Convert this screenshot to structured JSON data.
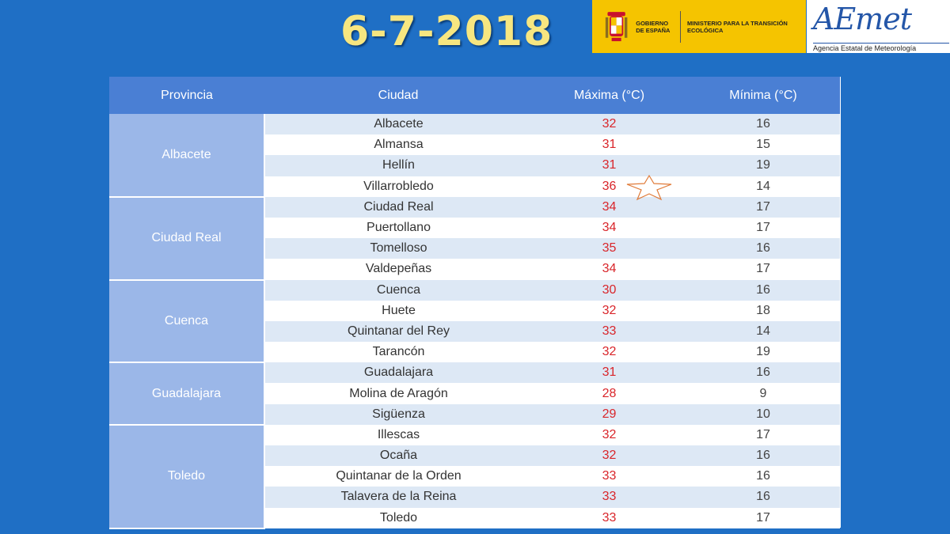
{
  "header": {
    "date": "6-7-2018",
    "gobierno": "GOBIERNO DE ESPAÑA",
    "ministerio": "MINISTERIO PARA LA TRANSICIÓN ECOLÓGICA",
    "logo_text": "AEmet",
    "logo_subtitle": "Agencia Estatal de Meteorología"
  },
  "table": {
    "columns": [
      "Provincia",
      "Ciudad",
      "Máxima (°C)",
      "Mínima (°C)"
    ],
    "groups": [
      {
        "provincia": "Albacete",
        "rows": [
          {
            "ciudad": "Albacete",
            "max": "32",
            "min": "16"
          },
          {
            "ciudad": "Almansa",
            "max": "31",
            "min": "15"
          },
          {
            "ciudad": "Hellín",
            "max": "31",
            "min": "19"
          },
          {
            "ciudad": "Villarrobledo",
            "max": "36",
            "min": "14"
          }
        ]
      },
      {
        "provincia": "Ciudad Real",
        "rows": [
          {
            "ciudad": "Ciudad Real",
            "max": "34",
            "min": "17"
          },
          {
            "ciudad": "Puertollano",
            "max": "34",
            "min": "17"
          },
          {
            "ciudad": "Tomelloso",
            "max": "35",
            "min": "16"
          },
          {
            "ciudad": "Valdepeñas",
            "max": "34",
            "min": "17"
          }
        ]
      },
      {
        "provincia": "Cuenca",
        "rows": [
          {
            "ciudad": "Cuenca",
            "max": "30",
            "min": "16"
          },
          {
            "ciudad": "Huete",
            "max": "32",
            "min": "18"
          },
          {
            "ciudad": "Quintanar del Rey",
            "max": "33",
            "min": "14"
          },
          {
            "ciudad": "Tarancón",
            "max": "32",
            "min": "19"
          }
        ]
      },
      {
        "provincia": "Guadalajara",
        "rows": [
          {
            "ciudad": "Guadalajara",
            "max": "31",
            "min": "16"
          },
          {
            "ciudad": "Molina de Aragón",
            "max": "28",
            "min": "9"
          },
          {
            "ciudad": "Sigüenza",
            "max": "29",
            "min": "10"
          }
        ]
      },
      {
        "provincia": "Toledo",
        "rows": [
          {
            "ciudad": "Illescas",
            "max": "32",
            "min": "17"
          },
          {
            "ciudad": "Ocaña",
            "max": "32",
            "min": "16"
          },
          {
            "ciudad": "Quintanar de la Orden",
            "max": "33",
            "min": "16"
          },
          {
            "ciudad": "Talavera de la Reina",
            "max": "33",
            "min": "16"
          },
          {
            "ciudad": "Toledo",
            "max": "33",
            "min": "17"
          }
        ]
      }
    ]
  },
  "colors": {
    "background": "#1f6fc5",
    "header_row": "#4a7fd4",
    "province_cell": "#9bb7e8",
    "max_temp": "#d9252a",
    "title": "#f7e680"
  },
  "icons": {
    "highlight": "star-icon",
    "crest": "spain-coat-of-arms-icon"
  }
}
